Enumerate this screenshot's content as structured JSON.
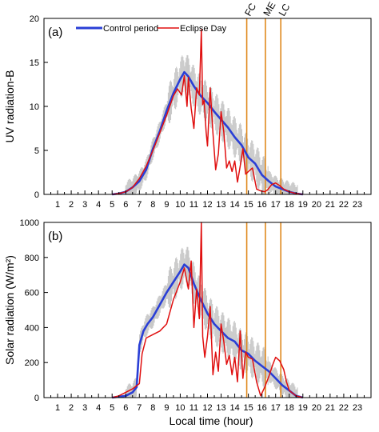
{
  "colors": {
    "control": "#2a3fd6",
    "eclipse": "#e01010",
    "band": "#c8c8c8",
    "vline": "#e08a1e",
    "axis": "#000000"
  },
  "legend": {
    "control": "Control period",
    "eclipse": "Eclipse Day"
  },
  "xlabel": "Local time (hour)",
  "vlines": [
    {
      "label": "FC",
      "x": 14.88
    },
    {
      "label": "ME",
      "x": 16.25
    },
    {
      "label": "LC",
      "x": 17.38
    }
  ],
  "chart_data": [
    {
      "type": "line",
      "panel": "(a)",
      "ylabel": "UV radiation-B",
      "xlim": [
        0,
        24
      ],
      "ylim": [
        0,
        20
      ],
      "xticks": [
        1,
        2,
        3,
        4,
        5,
        6,
        7,
        8,
        9,
        10,
        11,
        12,
        13,
        14,
        15,
        16,
        17,
        18,
        19,
        20,
        21,
        22,
        23
      ],
      "yticks": [
        0,
        5,
        10,
        15,
        20
      ],
      "series": [
        {
          "name": "Control period",
          "x": [
            5.0,
            5.5,
            6.0,
            6.5,
            7.0,
            7.5,
            8.0,
            8.5,
            9.0,
            9.5,
            10.0,
            10.3,
            10.6,
            11.0,
            11.5,
            12.0,
            12.5,
            13.0,
            13.5,
            14.0,
            14.5,
            15.0,
            15.5,
            16.0,
            16.5,
            17.0,
            17.5,
            18.0,
            18.5,
            19.0
          ],
          "y": [
            0,
            0.1,
            0.3,
            0.8,
            1.5,
            2.8,
            5.2,
            7.2,
            9.5,
            11.5,
            13.1,
            13.9,
            13.4,
            12.3,
            11.2,
            10.4,
            9.4,
            8.5,
            7.6,
            6.5,
            5.6,
            4.2,
            3.5,
            2.2,
            1.5,
            0.9,
            0.6,
            0.3,
            0.1,
            0
          ]
        },
        {
          "name": "Eclipse Day",
          "x": [
            5.0,
            5.5,
            6.0,
            6.5,
            7.0,
            7.5,
            8.0,
            8.5,
            9.0,
            9.5,
            9.8,
            10.1,
            10.3,
            10.5,
            10.6,
            10.8,
            11.0,
            11.2,
            11.4,
            11.55,
            11.65,
            11.75,
            11.9,
            12.0,
            12.2,
            12.4,
            12.6,
            12.8,
            13.0,
            13.2,
            13.4,
            13.6,
            13.8,
            14.0,
            14.2,
            14.4,
            14.6,
            14.8,
            15.0,
            15.3,
            15.6,
            15.9,
            16.2,
            16.4,
            16.7,
            17.0,
            17.3,
            17.6,
            18.0,
            18.5,
            19.0
          ],
          "y": [
            0,
            0.1,
            0.3,
            0.8,
            1.8,
            3.2,
            5.0,
            7.0,
            9.0,
            11.2,
            12.0,
            11.3,
            13.5,
            10.0,
            13.3,
            9.8,
            7.5,
            12.1,
            11.3,
            18.7,
            10.2,
            10.7,
            7.1,
            5.5,
            12.1,
            7.0,
            2.8,
            4.6,
            9.4,
            7.1,
            3.0,
            3.8,
            2.6,
            3.8,
            1.4,
            3.2,
            5.2,
            2.3,
            2.6,
            3.0,
            0.6,
            0.4,
            0.3,
            0.5,
            1.1,
            1.3,
            1.0,
            0.6,
            0.3,
            0.1,
            0
          ]
        }
      ]
    },
    {
      "type": "line",
      "panel": "(b)",
      "ylabel": "Solar radiation (W/m²)",
      "xlim": [
        0,
        24
      ],
      "ylim": [
        0,
        1000
      ],
      "xticks": [
        1,
        2,
        3,
        4,
        5,
        6,
        7,
        8,
        9,
        10,
        11,
        12,
        13,
        14,
        15,
        16,
        17,
        18,
        19,
        20,
        21,
        22,
        23
      ],
      "yticks": [
        0,
        200,
        400,
        600,
        800,
        1000
      ],
      "series": [
        {
          "name": "Control period",
          "x": [
            5.0,
            5.5,
            6.0,
            6.5,
            6.8,
            7.0,
            7.3,
            7.6,
            8.0,
            8.5,
            9.0,
            9.5,
            10.0,
            10.3,
            10.6,
            11.0,
            11.5,
            12.0,
            12.5,
            13.0,
            13.5,
            14.0,
            14.5,
            15.0,
            15.5,
            16.0,
            16.5,
            17.0,
            17.5,
            18.0,
            18.5,
            19.0
          ],
          "y": [
            0,
            5,
            10,
            30,
            60,
            300,
            380,
            420,
            460,
            530,
            600,
            660,
            720,
            760,
            740,
            650,
            560,
            480,
            420,
            380,
            340,
            320,
            270,
            250,
            210,
            180,
            150,
            110,
            70,
            40,
            10,
            0
          ]
        },
        {
          "name": "Eclipse Day",
          "x": [
            5.0,
            5.5,
            6.0,
            6.5,
            7.0,
            7.2,
            7.5,
            8.0,
            8.5,
            9.0,
            9.5,
            10.0,
            10.3,
            10.6,
            10.8,
            11.0,
            11.2,
            11.4,
            11.55,
            11.65,
            11.8,
            12.0,
            12.2,
            12.4,
            12.6,
            12.8,
            13.0,
            13.2,
            13.4,
            13.6,
            13.8,
            14.0,
            14.2,
            14.4,
            14.6,
            14.8,
            15.0,
            15.3,
            15.6,
            15.9,
            16.2,
            16.5,
            16.8,
            17.0,
            17.3,
            17.6,
            17.8,
            18.0,
            18.5,
            19.0
          ],
          "y": [
            0,
            10,
            30,
            50,
            80,
            250,
            340,
            360,
            380,
            420,
            560,
            660,
            740,
            620,
            780,
            400,
            620,
            450,
            1000,
            350,
            230,
            350,
            520,
            130,
            260,
            150,
            420,
            320,
            190,
            240,
            130,
            230,
            90,
            380,
            110,
            260,
            230,
            220,
            90,
            10,
            60,
            120,
            190,
            230,
            210,
            160,
            90,
            40,
            10,
            0
          ]
        }
      ]
    }
  ]
}
